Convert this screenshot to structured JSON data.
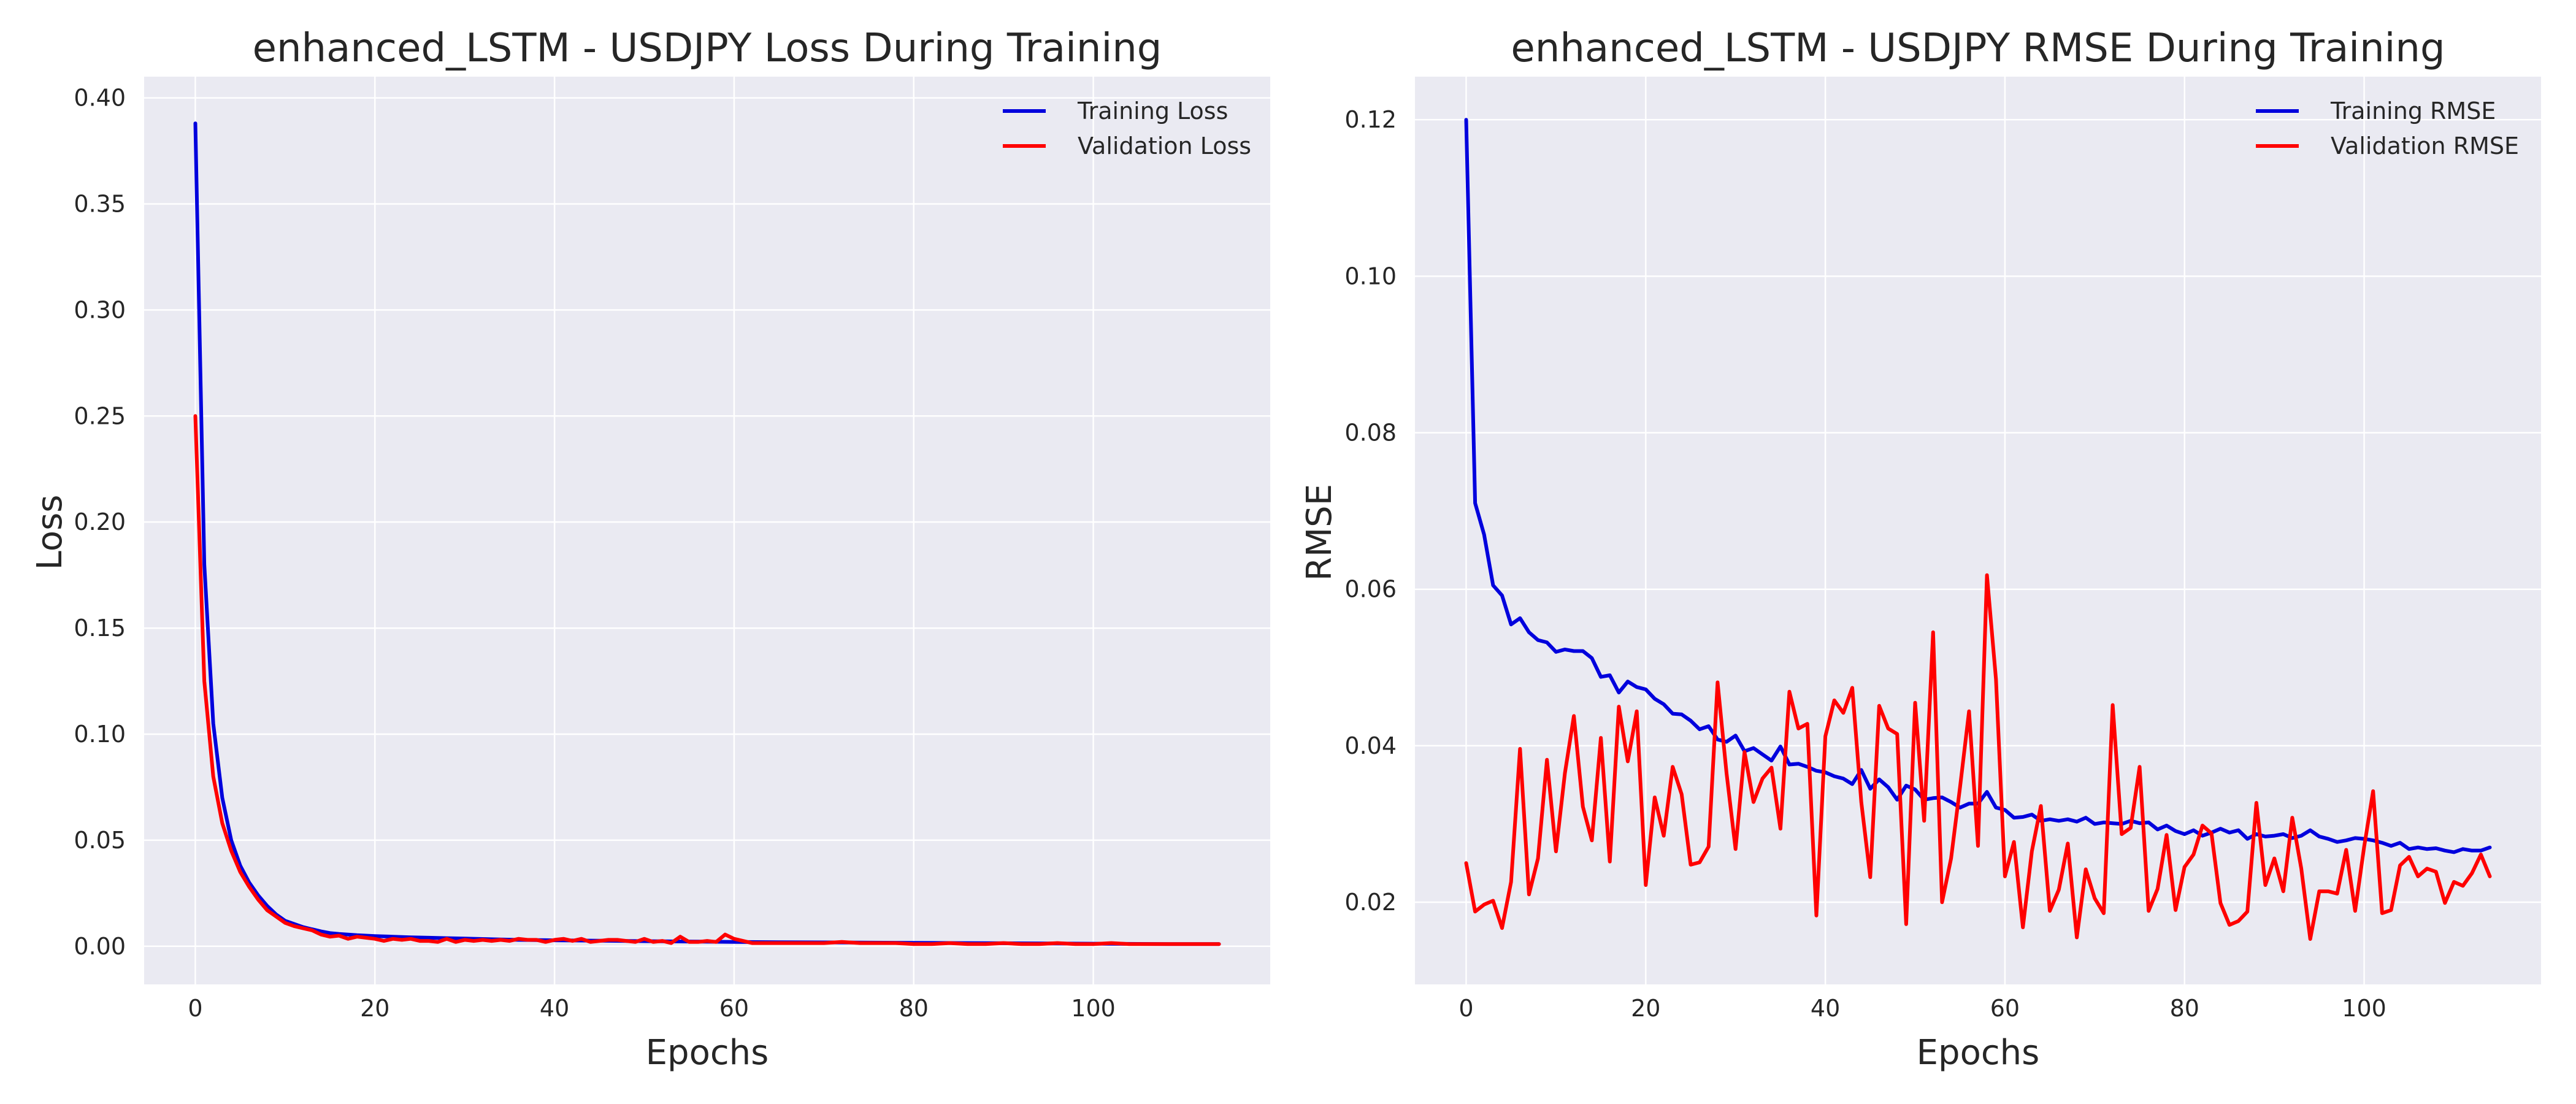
{
  "chart_data": [
    {
      "type": "line",
      "title": "enhanced_LSTM - USDJPY Loss During Training",
      "xlabel": "Epochs",
      "ylabel": "Loss",
      "xlim": [
        -5.7,
        119.7
      ],
      "ylim": [
        -0.018,
        0.41
      ],
      "xticks": [
        0,
        20,
        40,
        60,
        80,
        100
      ],
      "yticks": [
        0.0,
        0.05,
        0.1,
        0.15,
        0.2,
        0.25,
        0.3,
        0.35,
        0.4
      ],
      "ytick_labels": [
        "0.00",
        "0.05",
        "0.10",
        "0.15",
        "0.20",
        "0.25",
        "0.30",
        "0.35",
        "0.40"
      ],
      "grid": true,
      "legend": "top-right",
      "series": [
        {
          "name": "Training Loss",
          "color": "#0000dd",
          "x": [
            0,
            1,
            2,
            3,
            4,
            5,
            6,
            7,
            8,
            9,
            10,
            11,
            12,
            13,
            14,
            15,
            16,
            17,
            18,
            19,
            20,
            22,
            24,
            26,
            28,
            30,
            32,
            34,
            36,
            38,
            40,
            45,
            50,
            55,
            60,
            65,
            70,
            75,
            80,
            85,
            90,
            95,
            100,
            105,
            110,
            114
          ],
          "y": [
            0.388,
            0.18,
            0.105,
            0.07,
            0.05,
            0.038,
            0.03,
            0.024,
            0.019,
            0.015,
            0.012,
            0.0105,
            0.009,
            0.008,
            0.007,
            0.0062,
            0.0058,
            0.0055,
            0.0052,
            0.005,
            0.0048,
            0.0045,
            0.0042,
            0.004,
            0.0038,
            0.0036,
            0.0034,
            0.0032,
            0.003,
            0.0029,
            0.0028,
            0.0026,
            0.0024,
            0.0022,
            0.002,
            0.0019,
            0.0018,
            0.0017,
            0.0016,
            0.0015,
            0.0014,
            0.0013,
            0.0012,
            0.0011,
            0.001,
            0.001
          ]
        },
        {
          "name": "Validation Loss",
          "color": "#ff0000",
          "x": [
            0,
            1,
            2,
            3,
            4,
            5,
            6,
            7,
            8,
            9,
            10,
            11,
            12,
            13,
            14,
            15,
            16,
            17,
            18,
            19,
            20,
            21,
            22,
            23,
            24,
            25,
            26,
            27,
            28,
            29,
            30,
            31,
            32,
            33,
            34,
            35,
            36,
            37,
            38,
            39,
            40,
            41,
            42,
            43,
            44,
            45,
            46,
            47,
            48,
            49,
            50,
            51,
            52,
            53,
            54,
            55,
            56,
            57,
            58,
            59,
            60,
            62,
            64,
            66,
            68,
            70,
            72,
            74,
            76,
            78,
            80,
            82,
            84,
            86,
            88,
            90,
            92,
            94,
            96,
            98,
            100,
            102,
            104,
            106,
            108,
            110,
            112,
            114
          ],
          "y": [
            0.25,
            0.125,
            0.08,
            0.058,
            0.045,
            0.035,
            0.028,
            0.022,
            0.017,
            0.014,
            0.011,
            0.0095,
            0.0085,
            0.0075,
            0.0055,
            0.0045,
            0.005,
            0.0035,
            0.0045,
            0.004,
            0.0035,
            0.0025,
            0.0035,
            0.003,
            0.0035,
            0.0025,
            0.0025,
            0.002,
            0.0035,
            0.002,
            0.003,
            0.0025,
            0.003,
            0.0025,
            0.003,
            0.0025,
            0.0035,
            0.003,
            0.003,
            0.002,
            0.003,
            0.0035,
            0.0025,
            0.0035,
            0.002,
            0.0025,
            0.003,
            0.003,
            0.0025,
            0.002,
            0.0035,
            0.002,
            0.0025,
            0.0015,
            0.0045,
            0.002,
            0.002,
            0.0025,
            0.002,
            0.0055,
            0.0035,
            0.0015,
            0.0015,
            0.0015,
            0.0015,
            0.0015,
            0.002,
            0.0015,
            0.0015,
            0.0015,
            0.001,
            0.001,
            0.0015,
            0.001,
            0.001,
            0.0015,
            0.001,
            0.001,
            0.0015,
            0.001,
            0.001,
            0.0015,
            0.001,
            0.001,
            0.001,
            0.001,
            0.001,
            0.001
          ]
        }
      ]
    },
    {
      "type": "line",
      "title": "enhanced_LSTM - USDJPY RMSE During Training",
      "xlabel": "Epochs",
      "ylabel": "RMSE",
      "xlim": [
        -5.7,
        119.7
      ],
      "ylim": [
        0.0095,
        0.1255
      ],
      "xticks": [
        0,
        20,
        40,
        60,
        80,
        100
      ],
      "yticks": [
        0.02,
        0.04,
        0.06,
        0.08,
        0.1,
        0.12
      ],
      "ytick_labels": [
        "0.02",
        "0.04",
        "0.06",
        "0.08",
        "0.10",
        "0.12"
      ],
      "grid": true,
      "legend": "top-right",
      "series": [
        {
          "name": "Training RMSE",
          "color": "#0000dd",
          "x": [
            0,
            1,
            2,
            3,
            4,
            5,
            6,
            7,
            8,
            9,
            10,
            11,
            12,
            13,
            14,
            15,
            16,
            17,
            18,
            19,
            20,
            21,
            22,
            23,
            24,
            25,
            26,
            27,
            28,
            29,
            30,
            31,
            32,
            33,
            34,
            35,
            36,
            37,
            38,
            39,
            40,
            41,
            42,
            43,
            44,
            45,
            46,
            47,
            48,
            49,
            50,
            51,
            52,
            53,
            54,
            55,
            56,
            57,
            58,
            59,
            60,
            61,
            62,
            63,
            64,
            65,
            66,
            67,
            68,
            69,
            70,
            71,
            72,
            73,
            74,
            75,
            76,
            77,
            78,
            79,
            80,
            81,
            82,
            83,
            84,
            85,
            86,
            87,
            88,
            89,
            90,
            91,
            92,
            93,
            94,
            95,
            96,
            97,
            98,
            99,
            100,
            101,
            102,
            103,
            104,
            105,
            106,
            107,
            108,
            109,
            110,
            111,
            112,
            113,
            114
          ],
          "y": [
            0.12,
            0.071,
            0.067,
            0.0605,
            0.0592,
            0.0555,
            0.0563,
            0.0545,
            0.0535,
            0.0532,
            0.052,
            0.0523,
            0.0521,
            0.0521,
            0.0512,
            0.0488,
            0.049,
            0.0468,
            0.0482,
            0.0475,
            0.0472,
            0.046,
            0.0453,
            0.0441,
            0.044,
            0.0432,
            0.0421,
            0.0425,
            0.0408,
            0.0405,
            0.0413,
            0.0393,
            0.0397,
            0.0389,
            0.0381,
            0.0399,
            0.0376,
            0.0377,
            0.0373,
            0.0368,
            0.0366,
            0.0361,
            0.0358,
            0.0351,
            0.0369,
            0.0345,
            0.0357,
            0.0347,
            0.0331,
            0.0349,
            0.0344,
            0.0331,
            0.0333,
            0.0334,
            0.0328,
            0.0321,
            0.0326,
            0.0326,
            0.0341,
            0.0321,
            0.0318,
            0.0308,
            0.0309,
            0.0312,
            0.0304,
            0.0306,
            0.0304,
            0.0306,
            0.0303,
            0.0308,
            0.03,
            0.0302,
            0.0301,
            0.03,
            0.0304,
            0.0301,
            0.0302,
            0.0293,
            0.0298,
            0.0291,
            0.0287,
            0.0292,
            0.0285,
            0.0289,
            0.0294,
            0.0289,
            0.0292,
            0.0281,
            0.0287,
            0.0284,
            0.0285,
            0.0287,
            0.0282,
            0.0285,
            0.0292,
            0.0284,
            0.0281,
            0.0277,
            0.0279,
            0.0282,
            0.0281,
            0.0279,
            0.0276,
            0.0272,
            0.0276,
            0.0268,
            0.027,
            0.0268,
            0.0269,
            0.0266,
            0.0264,
            0.0268,
            0.0266,
            0.0266,
            0.027
          ]
        },
        {
          "name": "Validation RMSE",
          "color": "#ff0000",
          "x": [
            0,
            1,
            2,
            3,
            4,
            5,
            6,
            7,
            8,
            9,
            10,
            11,
            12,
            13,
            14,
            15,
            16,
            17,
            18,
            19,
            20,
            21,
            22,
            23,
            24,
            25,
            26,
            27,
            28,
            29,
            30,
            31,
            32,
            33,
            34,
            35,
            36,
            37,
            38,
            39,
            40,
            41,
            42,
            43,
            44,
            45,
            46,
            47,
            48,
            49,
            50,
            51,
            52,
            53,
            54,
            55,
            56,
            57,
            58,
            59,
            60,
            61,
            62,
            63,
            64,
            65,
            66,
            67,
            68,
            69,
            70,
            71,
            72,
            73,
            74,
            75,
            76,
            77,
            78,
            79,
            80,
            81,
            82,
            83,
            84,
            85,
            86,
            87,
            88,
            89,
            90,
            91,
            92,
            93,
            94,
            95,
            96,
            97,
            98,
            99,
            100,
            101,
            102,
            103,
            104,
            105,
            106,
            107,
            108,
            109,
            110,
            111,
            112,
            113,
            114
          ],
          "y": [
            0.025,
            0.0188,
            0.0197,
            0.0202,
            0.0167,
            0.0226,
            0.0396,
            0.021,
            0.0256,
            0.0382,
            0.0265,
            0.0365,
            0.0438,
            0.0322,
            0.0279,
            0.041,
            0.0252,
            0.045,
            0.038,
            0.0444,
            0.0222,
            0.0334,
            0.0285,
            0.0373,
            0.0338,
            0.0248,
            0.0251,
            0.0271,
            0.0481,
            0.0365,
            0.0268,
            0.0392,
            0.0328,
            0.0358,
            0.0372,
            0.0294,
            0.0469,
            0.0422,
            0.0428,
            0.0183,
            0.0412,
            0.0458,
            0.0442,
            0.0474,
            0.0328,
            0.0232,
            0.0451,
            0.0422,
            0.0415,
            0.0172,
            0.0455,
            0.0304,
            0.0545,
            0.02,
            0.0256,
            0.0347,
            0.0444,
            0.0272,
            0.0618,
            0.0485,
            0.0233,
            0.0277,
            0.0168,
            0.0265,
            0.0323,
            0.0189,
            0.0216,
            0.0275,
            0.0155,
            0.0242,
            0.0205,
            0.0186,
            0.0452,
            0.0287,
            0.0295,
            0.0373,
            0.0189,
            0.0217,
            0.0286,
            0.019,
            0.0245,
            0.0261,
            0.0298,
            0.0288,
            0.0199,
            0.0171,
            0.0176,
            0.0188,
            0.0327,
            0.0222,
            0.0256,
            0.0214,
            0.0308,
            0.0243,
            0.0153,
            0.0214,
            0.0214,
            0.0211,
            0.0267,
            0.0189,
            0.0271,
            0.0342,
            0.0186,
            0.019,
            0.0247,
            0.0258,
            0.0233,
            0.0243,
            0.0239,
            0.0199,
            0.0226,
            0.0221,
            0.0237,
            0.0261,
            0.0233
          ]
        }
      ]
    }
  ]
}
